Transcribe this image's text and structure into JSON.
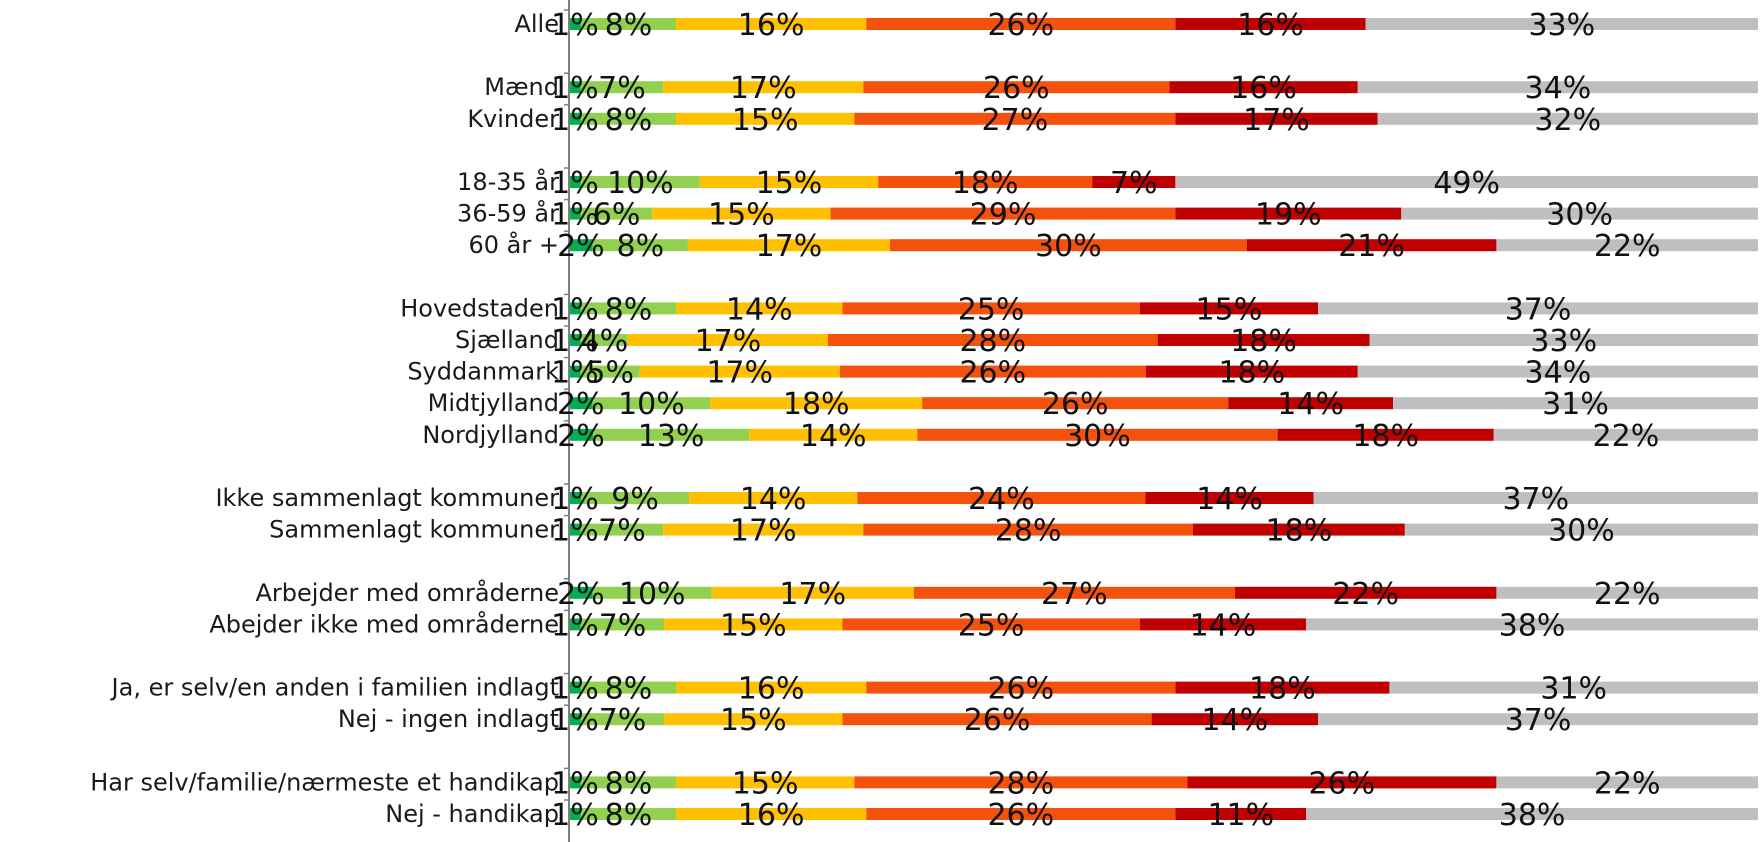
{
  "chart_data": {
    "type": "bar",
    "orientation": "horizontal",
    "stacked": true,
    "percent_stacked": true,
    "legend": "none",
    "grid": false,
    "xlim": [
      0,
      100
    ],
    "segment_colors": [
      "#00b050",
      "#92d050",
      "#ffc000",
      "#f4520c",
      "#c00000",
      "#bfbfbf"
    ],
    "categories": [
      "Alle",
      "Mænd",
      "Kvinder",
      "18-35 år",
      "36-59 år",
      "60 år +",
      "Hovedstaden",
      "Sjælland",
      "Syddanmark",
      "Midtjylland",
      "Nordjylland",
      "Ikke sammenlagt kommuner",
      "Sammenlagt kommuner",
      "Arbejder med områderne",
      "Abejder ikke med områderne",
      "Ja, er selv/en anden i familien indlagt",
      "Nej - ingen indlagt",
      "Har selv/familie/nærmeste et handikap",
      "Nej - handikap"
    ],
    "group_breaks_after": [
      0,
      2,
      5,
      10,
      12,
      14,
      16
    ],
    "rows": [
      [
        1,
        8,
        16,
        26,
        16,
        33
      ],
      [
        1,
        7,
        17,
        26,
        16,
        34
      ],
      [
        1,
        8,
        15,
        27,
        17,
        32
      ],
      [
        1,
        10,
        15,
        18,
        7,
        49
      ],
      [
        1,
        6,
        15,
        29,
        19,
        30
      ],
      [
        2,
        8,
        17,
        30,
        21,
        22
      ],
      [
        1,
        8,
        14,
        25,
        15,
        37
      ],
      [
        1,
        4,
        17,
        28,
        18,
        33
      ],
      [
        1,
        5,
        17,
        26,
        18,
        34
      ],
      [
        2,
        10,
        18,
        26,
        14,
        31
      ],
      [
        2,
        13,
        14,
        30,
        18,
        22
      ],
      [
        1,
        9,
        14,
        24,
        14,
        37
      ],
      [
        1,
        7,
        17,
        28,
        18,
        30
      ],
      [
        2,
        10,
        17,
        27,
        22,
        22
      ],
      [
        1,
        7,
        15,
        25,
        14,
        38
      ],
      [
        1,
        8,
        16,
        26,
        18,
        31
      ],
      [
        1,
        7,
        15,
        26,
        14,
        37
      ],
      [
        1,
        8,
        15,
        28,
        26,
        22
      ],
      [
        1,
        8,
        16,
        26,
        11,
        38
      ]
    ],
    "value_suffix": "%"
  }
}
